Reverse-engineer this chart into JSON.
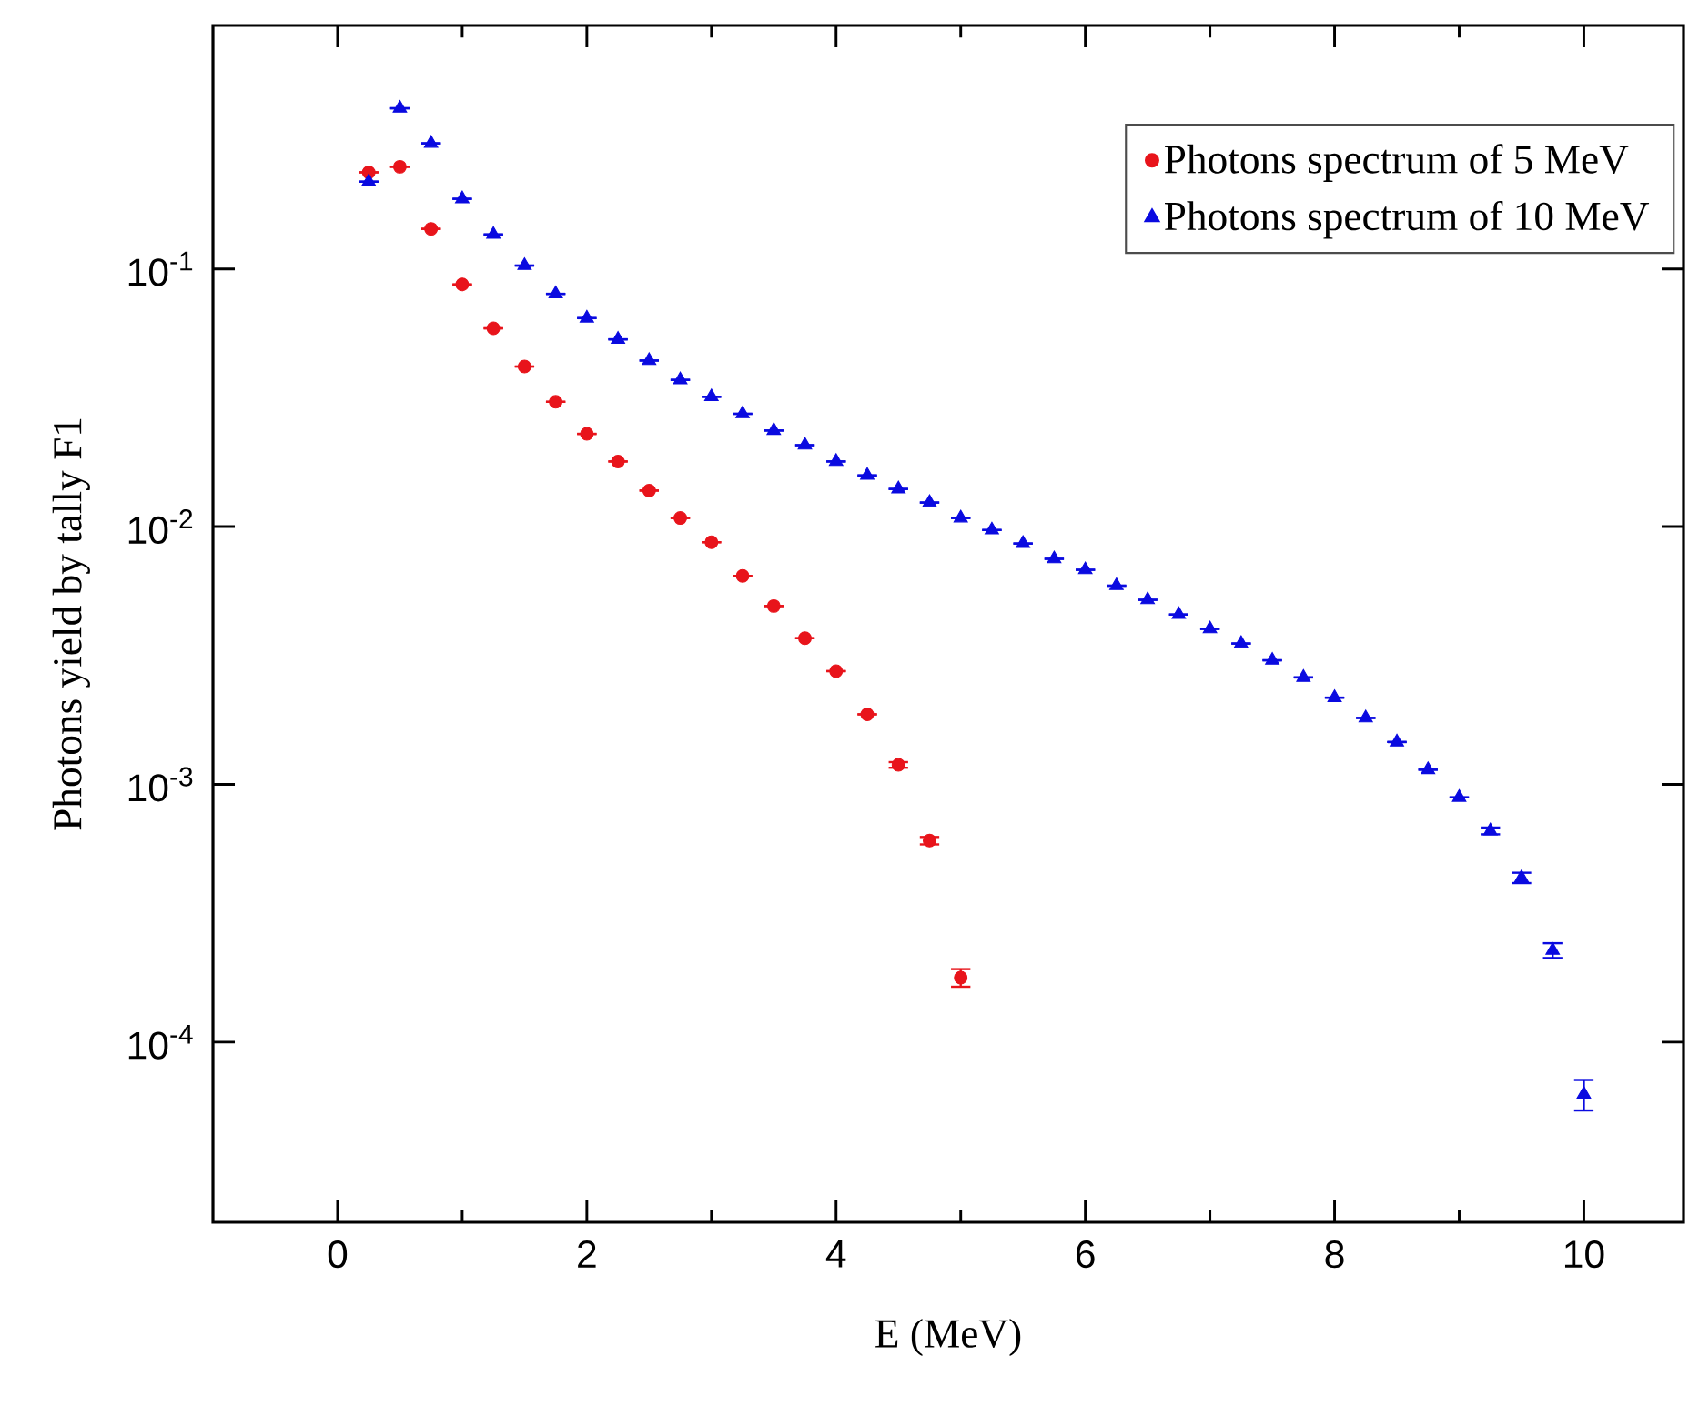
{
  "chart_data": {
    "type": "scatter",
    "xlabel": "E (MeV)",
    "ylabel": "Photons yield by tally F1",
    "log": "y",
    "grid": false,
    "legend": "top right",
    "xlim": [
      -1,
      10.8
    ],
    "xticks": [
      0,
      2,
      4,
      6,
      8,
      10
    ],
    "ylim": [
      2e-05,
      0.88
    ],
    "yticks": [
      {
        "value": 0.1,
        "label": "10$^{-1}$"
      },
      {
        "value": 0.01,
        "label": "10$^{-2}$"
      },
      {
        "value": 0.001,
        "label": "10$^{-3}$"
      },
      {
        "value": 0.0001,
        "label": "10$^{-4}$"
      }
    ],
    "series": [
      {
        "name": "Photons spectrum of 5 MeV",
        "color": "#e8141b",
        "marker": "circle",
        "x": [
          0.25,
          0.5,
          0.75,
          1,
          1.25,
          1.5,
          1.75,
          2,
          2.25,
          2.5,
          2.75,
          3,
          3.25,
          3.5,
          3.75,
          4,
          4.25,
          4.5,
          4.75,
          5
        ],
        "values": [
          0.237,
          0.249,
          0.143,
          0.087,
          0.0588,
          0.0418,
          0.0305,
          0.0229,
          0.0179,
          0.0138,
          0.0108,
          0.0087,
          0.00644,
          0.00492,
          0.00369,
          0.00275,
          0.00187,
          0.00119,
          0.000605,
          0.000178
        ],
        "errors": [
          null,
          null,
          null,
          null,
          null,
          null,
          null,
          null,
          null,
          null,
          null,
          null,
          null,
          null,
          null,
          null,
          null,
          3e-05,
          2e-05,
          1.4e-05
        ]
      },
      {
        "name": "Photons spectrum of 10 MeV",
        "color": "#0a0ae0",
        "marker": "triangle",
        "x": [
          0.25,
          0.5,
          0.75,
          1,
          1.25,
          1.5,
          1.75,
          2,
          2.25,
          2.5,
          2.75,
          3,
          3.25,
          3.5,
          3.75,
          4,
          4.25,
          4.5,
          4.75,
          5,
          5.25,
          5.5,
          5.75,
          6,
          6.25,
          6.5,
          6.75,
          7,
          7.25,
          7.5,
          7.75,
          8,
          8.25,
          8.5,
          8.75,
          9,
          9.25,
          9.5,
          9.75,
          10
        ],
        "values": [
          0.218,
          0.42,
          0.307,
          0.187,
          0.136,
          0.103,
          0.08,
          0.0644,
          0.0533,
          0.0441,
          0.0371,
          0.0319,
          0.0274,
          0.0236,
          0.0207,
          0.0179,
          0.0158,
          0.014,
          0.0124,
          0.0108,
          0.0097,
          0.0086,
          0.0075,
          0.0068,
          0.0059,
          0.0052,
          0.00456,
          0.00401,
          0.00352,
          0.00303,
          0.0026,
          0.00217,
          0.00181,
          0.00146,
          0.00114,
          0.00089,
          0.00066,
          0.000434,
          0.000227,
          6.28e-05
        ],
        "errors": [
          null,
          null,
          null,
          null,
          null,
          null,
          null,
          null,
          null,
          null,
          null,
          null,
          null,
          null,
          null,
          null,
          null,
          null,
          null,
          null,
          null,
          null,
          null,
          null,
          null,
          null,
          null,
          null,
          null,
          null,
          null,
          null,
          null,
          null,
          null,
          null,
          2e-05,
          2e-05,
          1.5e-05,
          8.5e-06
        ]
      }
    ]
  }
}
